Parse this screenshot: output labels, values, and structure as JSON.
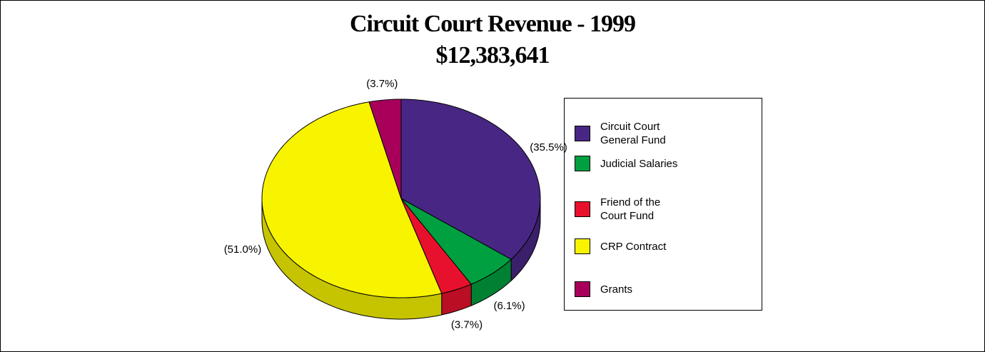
{
  "chart_data": {
    "type": "pie",
    "title": "Circuit Court Revenue - 1999",
    "subtitle": "$12,383,641",
    "categories": [
      "Circuit Court General Fund",
      "Judicial Salaries",
      "Friend of the Court Fund",
      "CRP Contract",
      "Grants"
    ],
    "values": [
      35.5,
      6.1,
      3.7,
      51.0,
      3.7
    ],
    "value_labels": [
      "(35.5%)",
      "(6.1%)",
      "(3.7%)",
      "(51.0%)",
      "(3.7%)"
    ],
    "colors": [
      "#482784",
      "#00a040",
      "#e8112d",
      "#f8f400",
      "#a8005a"
    ],
    "legend": "right"
  }
}
